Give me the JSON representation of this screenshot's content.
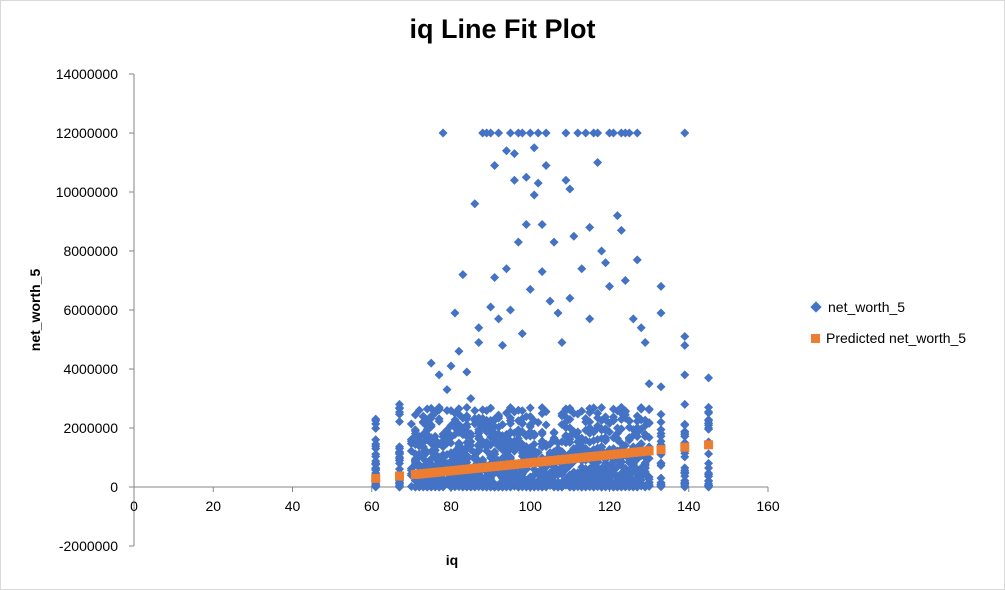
{
  "chart_data": {
    "type": "scatter",
    "title": "iq Line Fit  Plot",
    "xlabel": "iq",
    "ylabel": "net_worth_5",
    "xlim": [
      0,
      160
    ],
    "ylim": [
      -2000000,
      14000000
    ],
    "x_ticks": [
      "0",
      "20",
      "40",
      "60",
      "80",
      "100",
      "120",
      "140",
      "160"
    ],
    "y_ticks": [
      "-2000000",
      "0",
      "2000000",
      "4000000",
      "6000000",
      "8000000",
      "10000000",
      "12000000",
      "14000000"
    ],
    "legend_position": "right",
    "series": [
      {
        "name": "net_worth_5",
        "marker": "diamond",
        "color": "#4472c4",
        "points": [
          [
            61,
            2300000
          ],
          [
            61,
            1600000
          ],
          [
            61,
            600000
          ],
          [
            61,
            200000
          ],
          [
            67,
            2800000
          ],
          [
            67,
            1300000
          ],
          [
            67,
            800000
          ],
          [
            67,
            300000
          ],
          [
            71,
            1900000
          ],
          [
            71,
            1500000
          ],
          [
            71,
            900000
          ],
          [
            73,
            2400000
          ],
          [
            73,
            600000
          ],
          [
            75,
            4200000
          ],
          [
            75,
            2100000
          ],
          [
            77,
            2700000
          ],
          [
            77,
            3800000
          ],
          [
            78,
            12000000
          ],
          [
            79,
            3300000
          ],
          [
            80,
            4100000
          ],
          [
            81,
            5900000
          ],
          [
            81,
            2500000
          ],
          [
            82,
            4600000
          ],
          [
            83,
            7200000
          ],
          [
            84,
            3900000
          ],
          [
            85,
            3000000
          ],
          [
            86,
            9600000
          ],
          [
            87,
            5400000
          ],
          [
            87,
            4900000
          ],
          [
            88,
            12000000
          ],
          [
            89,
            12000000
          ],
          [
            90,
            12000000
          ],
          [
            90,
            6100000
          ],
          [
            91,
            10900000
          ],
          [
            91,
            7100000
          ],
          [
            92,
            12000000
          ],
          [
            92,
            5700000
          ],
          [
            93,
            4800000
          ],
          [
            94,
            11400000
          ],
          [
            94,
            7400000
          ],
          [
            95,
            12000000
          ],
          [
            95,
            6000000
          ],
          [
            96,
            11300000
          ],
          [
            96,
            10400000
          ],
          [
            97,
            12000000
          ],
          [
            97,
            8300000
          ],
          [
            98,
            12000000
          ],
          [
            98,
            5200000
          ],
          [
            99,
            10500000
          ],
          [
            99,
            8900000
          ],
          [
            100,
            12000000
          ],
          [
            100,
            6700000
          ],
          [
            101,
            11500000
          ],
          [
            101,
            9900000
          ],
          [
            102,
            12000000
          ],
          [
            102,
            10300000
          ],
          [
            103,
            8900000
          ],
          [
            103,
            7300000
          ],
          [
            104,
            12000000
          ],
          [
            104,
            10900000
          ],
          [
            105,
            6300000
          ],
          [
            106,
            8300000
          ],
          [
            107,
            5900000
          ],
          [
            108,
            4900000
          ],
          [
            109,
            12000000
          ],
          [
            109,
            10400000
          ],
          [
            110,
            10100000
          ],
          [
            110,
            6400000
          ],
          [
            111,
            8500000
          ],
          [
            112,
            12000000
          ],
          [
            113,
            7400000
          ],
          [
            114,
            12000000
          ],
          [
            115,
            8800000
          ],
          [
            115,
            5700000
          ],
          [
            116,
            12000000
          ],
          [
            117,
            12000000
          ],
          [
            117,
            11000000
          ],
          [
            118,
            8000000
          ],
          [
            119,
            7600000
          ],
          [
            120,
            12000000
          ],
          [
            120,
            6800000
          ],
          [
            121,
            12000000
          ],
          [
            122,
            9200000
          ],
          [
            123,
            8700000
          ],
          [
            123,
            12000000
          ],
          [
            124,
            12000000
          ],
          [
            124,
            7000000
          ],
          [
            125,
            12000000
          ],
          [
            126,
            5700000
          ],
          [
            127,
            12000000
          ],
          [
            127,
            7700000
          ],
          [
            128,
            5400000
          ],
          [
            129,
            4900000
          ],
          [
            130,
            3500000
          ],
          [
            133,
            6800000
          ],
          [
            133,
            5900000
          ],
          [
            133,
            3400000
          ],
          [
            133,
            2200000
          ],
          [
            133,
            1100000
          ],
          [
            133,
            300000
          ],
          [
            139,
            12000000
          ],
          [
            139,
            5100000
          ],
          [
            139,
            4800000
          ],
          [
            139,
            3800000
          ],
          [
            139,
            2800000
          ],
          [
            139,
            1500000
          ],
          [
            139,
            500000
          ],
          [
            145,
            3700000
          ],
          [
            145,
            2700000
          ],
          [
            145,
            2000000
          ],
          [
            145,
            800000
          ],
          [
            145,
            200000
          ]
        ]
      },
      {
        "name": "Predicted net_worth_5",
        "marker": "square",
        "color": "#ed7d31",
        "line": {
          "x0": 61,
          "y0": 290000,
          "x1": 145,
          "y1": 1430000
        }
      }
    ]
  }
}
